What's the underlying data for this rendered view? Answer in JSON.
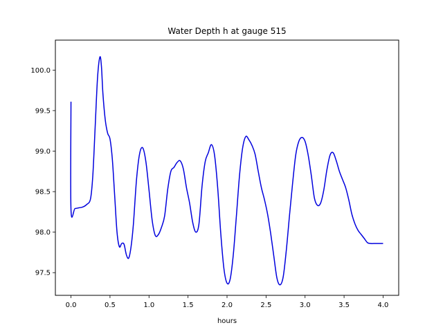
{
  "chart_data": {
    "type": "line",
    "title": "Water Depth h at gauge 515",
    "xlabel": "hours",
    "ylabel": "",
    "xlim": [
      -0.2,
      4.2
    ],
    "ylim": [
      97.22,
      100.37
    ],
    "xticks": [
      0.0,
      0.5,
      1.0,
      1.5,
      2.0,
      2.5,
      3.0,
      3.5,
      4.0
    ],
    "xtick_labels": [
      "0.0",
      "0.5",
      "1.0",
      "1.5",
      "2.0",
      "2.5",
      "3.0",
      "3.5",
      "4.0"
    ],
    "yticks": [
      97.5,
      98.0,
      98.5,
      99.0,
      99.5,
      100.0
    ],
    "ytick_labels": [
      "97.5",
      "98.0",
      "98.5",
      "99.0",
      "99.5",
      "100.0"
    ],
    "grid": false,
    "series": [
      {
        "color": "#0000dd",
        "x": [
          0.0,
          0.0,
          0.05,
          0.1,
          0.15,
          0.2,
          0.25,
          0.28,
          0.31,
          0.34,
          0.37,
          0.39,
          0.41,
          0.44,
          0.47,
          0.5,
          0.53,
          0.56,
          0.59,
          0.62,
          0.65,
          0.68,
          0.71,
          0.74,
          0.77,
          0.8,
          0.84,
          0.88,
          0.92,
          0.96,
          1.0,
          1.04,
          1.08,
          1.12,
          1.16,
          1.2,
          1.24,
          1.28,
          1.32,
          1.36,
          1.4,
          1.44,
          1.48,
          1.52,
          1.56,
          1.6,
          1.64,
          1.68,
          1.72,
          1.76,
          1.8,
          1.84,
          1.88,
          1.92,
          1.96,
          2.0,
          2.04,
          2.08,
          2.12,
          2.16,
          2.2,
          2.24,
          2.28,
          2.32,
          2.36,
          2.4,
          2.44,
          2.48,
          2.52,
          2.56,
          2.6,
          2.64,
          2.68,
          2.72,
          2.76,
          2.8,
          2.84,
          2.88,
          2.92,
          2.96,
          3.0,
          3.04,
          3.08,
          3.12,
          3.16,
          3.2,
          3.24,
          3.28,
          3.32,
          3.36,
          3.4,
          3.44,
          3.48,
          3.52,
          3.56,
          3.6,
          3.64,
          3.68,
          3.72,
          3.76,
          3.8,
          3.84,
          3.88,
          3.92,
          3.96,
          4.0
        ],
        "y": [
          99.61,
          98.28,
          98.29,
          98.3,
          98.31,
          98.34,
          98.41,
          98.7,
          99.3,
          99.9,
          100.16,
          100.05,
          99.7,
          99.38,
          99.22,
          99.15,
          98.9,
          98.45,
          98.0,
          97.82,
          97.86,
          97.85,
          97.72,
          97.68,
          97.82,
          98.1,
          98.65,
          98.97,
          99.04,
          98.87,
          98.52,
          98.15,
          97.96,
          97.97,
          98.06,
          98.2,
          98.53,
          98.75,
          98.8,
          98.86,
          98.88,
          98.78,
          98.55,
          98.36,
          98.12,
          98.0,
          98.1,
          98.57,
          98.87,
          98.98,
          99.08,
          98.95,
          98.55,
          97.98,
          97.55,
          97.37,
          97.42,
          97.72,
          98.2,
          98.7,
          99.04,
          99.18,
          99.14,
          99.07,
          98.96,
          98.75,
          98.55,
          98.4,
          98.22,
          97.98,
          97.7,
          97.43,
          97.35,
          97.45,
          97.78,
          98.2,
          98.6,
          98.95,
          99.12,
          99.17,
          99.12,
          98.95,
          98.7,
          98.42,
          98.33,
          98.36,
          98.52,
          98.77,
          98.95,
          98.98,
          98.88,
          98.75,
          98.65,
          98.55,
          98.4,
          98.22,
          98.1,
          98.02,
          97.97,
          97.92,
          97.87,
          97.86,
          97.86,
          97.86,
          97.86,
          97.86
        ]
      }
    ]
  }
}
